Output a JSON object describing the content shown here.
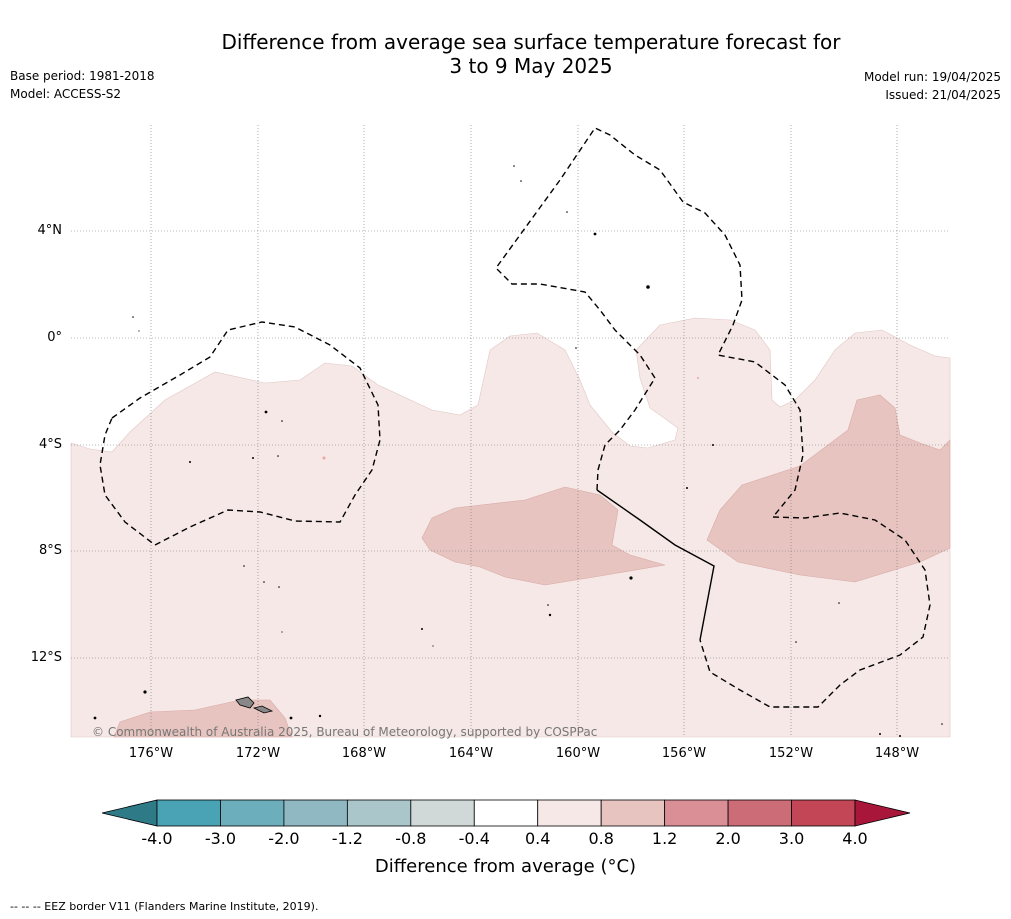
{
  "title_line1": "Difference from average sea surface temperature forecast for",
  "title_line2": "3 to 9 May 2025",
  "meta_left": [
    "Base period: 1981-2018",
    "Model: ACCESS-S2"
  ],
  "meta_right": [
    "Model run: 19/04/2025",
    "Issued: 21/04/2025"
  ],
  "lat_labels": [
    "4°N",
    "0°",
    "4°S",
    "8°S",
    "12°S"
  ],
  "lon_labels": [
    "176°W",
    "172°W",
    "168°W",
    "164°W",
    "160°W",
    "156°W",
    "152°W",
    "148°W"
  ],
  "copyright": "© Commonwealth of Australia 2025, Bureau of Meteorology, supported by COSPPac",
  "colorbar": {
    "ticks": [
      "-4.0",
      "-3.0",
      "-2.0",
      "-1.2",
      "-0.8",
      "-0.4",
      "0.4",
      "0.8",
      "1.2",
      "2.0",
      "3.0",
      "4.0"
    ],
    "colors": [
      "#2e7a87",
      "#4aa3b4",
      "#6daebd",
      "#8fb8c3",
      "#aac6cb",
      "#d1d8d8",
      "#ffffff",
      "#f5e8e6",
      "#e7c4c0",
      "#d98f95",
      "#cc6c77",
      "#c24655",
      "#a8163a"
    ],
    "label": "Difference from average (°C)"
  },
  "legend_footnote": "--  --  -- EEZ border V11 (Flanders Marine Institute, 2019).",
  "fill_colors": {
    "light": "#f5e8e6",
    "medium": "#e7c4c0",
    "land": "#999999"
  }
}
